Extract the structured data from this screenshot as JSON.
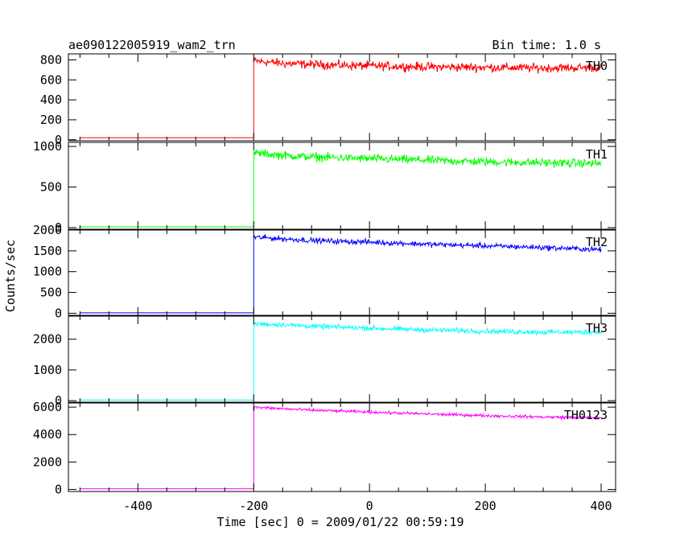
{
  "header": {
    "left_title": "ae090122005919_wam2_trn",
    "right_title": "Bin time: 1.0 s"
  },
  "axes": {
    "xlabel": "Time [sec] 0 = 2009/01/22 00:59:19",
    "ylabel": "Counts/sec"
  },
  "chart_data": {
    "type": "line",
    "title": "ae090122005919_wam2_trn",
    "subtitle": "Bin time: 1.0 s",
    "xlabel": "Time [sec] 0 = 2009/01/22 00:59:19",
    "ylabel": "Counts/sec",
    "xlim": [
      -520,
      425
    ],
    "x_ticks": [
      -400,
      -200,
      0,
      200,
      400
    ],
    "x_tick_labels": [
      "-400",
      "-200",
      "0",
      "200",
      "400"
    ],
    "grid": false,
    "trigger_time": -200,
    "panels": [
      {
        "name": "TH0",
        "color": "#ff0000",
        "ylim": [
          -10,
          860
        ],
        "y_ticks": [
          0,
          200,
          400,
          600,
          800
        ],
        "y_tick_labels": [
          "0",
          "200",
          "400",
          "600",
          "800"
        ],
        "pre_level": 20,
        "points": [
          [
            -200,
            790
          ],
          [
            -150,
            765
          ],
          [
            -100,
            755
          ],
          [
            0,
            740
          ],
          [
            100,
            730
          ],
          [
            200,
            725
          ],
          [
            300,
            718
          ],
          [
            400,
            725
          ]
        ],
        "noise": 38
      },
      {
        "name": "TH1",
        "color": "#00ff00",
        "ylim": [
          -20,
          1050
        ],
        "y_ticks": [
          0,
          500,
          1000
        ],
        "y_tick_labels": [
          "0",
          "500",
          "1000"
        ],
        "pre_level": 10,
        "points": [
          [
            -200,
            920
          ],
          [
            -150,
            890
          ],
          [
            -100,
            870
          ],
          [
            0,
            850
          ],
          [
            100,
            830
          ],
          [
            200,
            810
          ],
          [
            300,
            800
          ],
          [
            400,
            790
          ]
        ],
        "noise": 45
      },
      {
        "name": "TH2",
        "color": "#0000ff",
        "ylim": [
          -50,
          2000
        ],
        "y_ticks": [
          0,
          500,
          1000,
          1500,
          2000
        ],
        "y_tick_labels": [
          "0",
          "500",
          "1000",
          "1500",
          "2000"
        ],
        "pre_level": 10,
        "points": [
          [
            -200,
            1830
          ],
          [
            -150,
            1790
          ],
          [
            -100,
            1750
          ],
          [
            0,
            1710
          ],
          [
            100,
            1660
          ],
          [
            200,
            1620
          ],
          [
            300,
            1580
          ],
          [
            400,
            1530
          ]
        ],
        "noise": 55
      },
      {
        "name": "TH3",
        "color": "#00ffff",
        "ylim": [
          -50,
          2750
        ],
        "y_ticks": [
          0,
          1000,
          2000
        ],
        "y_tick_labels": [
          "0",
          "1000",
          "2000"
        ],
        "pre_level": 20,
        "points": [
          [
            -200,
            2500
          ],
          [
            -150,
            2470
          ],
          [
            -100,
            2420
          ],
          [
            0,
            2360
          ],
          [
            100,
            2300
          ],
          [
            200,
            2260
          ],
          [
            300,
            2230
          ],
          [
            400,
            2230
          ]
        ],
        "noise": 70
      },
      {
        "name": "TH0123",
        "color": "#ff00ff",
        "ylim": [
          -150,
          6300
        ],
        "y_ticks": [
          0,
          2000,
          4000,
          6000
        ],
        "y_tick_labels": [
          "0",
          "2000",
          "4000",
          "6000"
        ],
        "pre_level": 50,
        "points": [
          [
            -200,
            6000
          ],
          [
            -150,
            5880
          ],
          [
            -100,
            5780
          ],
          [
            0,
            5640
          ],
          [
            100,
            5500
          ],
          [
            200,
            5380
          ],
          [
            300,
            5280
          ],
          [
            400,
            5230
          ]
        ],
        "noise": 90
      }
    ]
  }
}
